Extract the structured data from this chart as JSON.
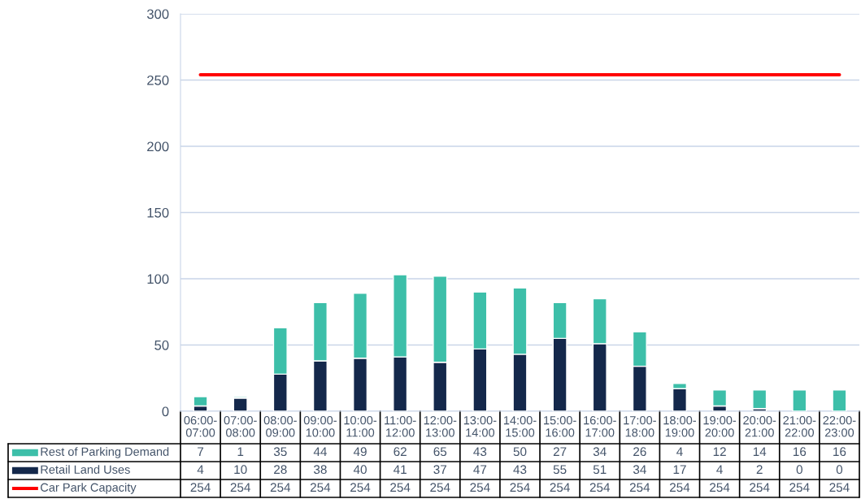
{
  "chart_data": {
    "type": "bar",
    "stacked": true,
    "categories": [
      "06:00-07:00",
      "07:00-08:00",
      "08:00-09:00",
      "09:00-10:00",
      "10:00-11:00",
      "11:00-12:00",
      "12:00-13:00",
      "13:00-14:00",
      "14:00-15:00",
      "15:00-16:00",
      "16:00-17:00",
      "17:00-18:00",
      "18:00-19:00",
      "19:00-20:00",
      "20:00-21:00",
      "21:00-22:00",
      "22:00-23:00"
    ],
    "series": [
      {
        "name": "Retail Land Uses",
        "color": "#14284b",
        "values": [
          4,
          10,
          28,
          38,
          40,
          41,
          37,
          47,
          43,
          55,
          51,
          34,
          17,
          4,
          2,
          0,
          0
        ]
      },
      {
        "name": "Rest of Parking Demand",
        "color": "#3dbfa9",
        "values": [
          7,
          1,
          35,
          44,
          49,
          62,
          65,
          43,
          50,
          27,
          34,
          26,
          4,
          12,
          14,
          16,
          16
        ]
      },
      {
        "name": "Car Park Capacity",
        "type": "line",
        "color": "#ff0000",
        "values": [
          254,
          254,
          254,
          254,
          254,
          254,
          254,
          254,
          254,
          254,
          254,
          254,
          254,
          254,
          254,
          254,
          254
        ]
      }
    ],
    "ylim": [
      0,
      300
    ],
    "yticks": [
      0,
      50,
      100,
      150,
      200,
      250,
      300
    ],
    "grid": "y",
    "data_labels": true,
    "legend": "bottom left"
  }
}
